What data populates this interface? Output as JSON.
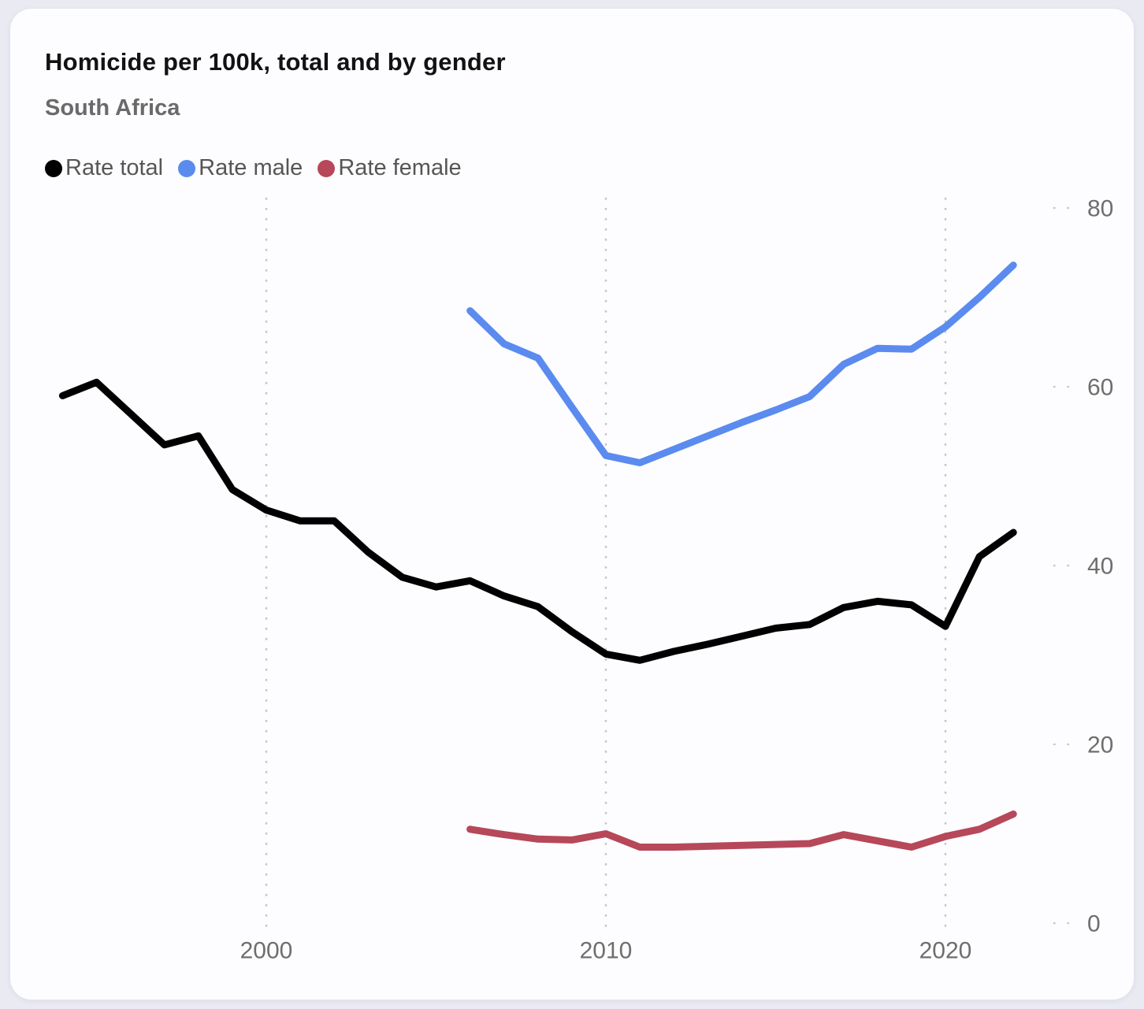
{
  "header": {
    "title": "Homicide per 100k, total and by gender",
    "subtitle": "South Africa"
  },
  "legend": {
    "items": [
      {
        "label": "Rate total",
        "color": "#000000"
      },
      {
        "label": "Rate male",
        "color": "#5b8bef"
      },
      {
        "label": "Rate female",
        "color": "#b6485a"
      }
    ]
  },
  "colors": {
    "page_background": "#e9eaf2",
    "card_background": "#fdfdff",
    "gridline": "#c6c6c6",
    "axis_text": "#6e6e6e",
    "title_text": "#121212",
    "subtitle_text": "#6a6a6a"
  },
  "chart_data": {
    "type": "line",
    "title": "Homicide per 100k, total and by gender",
    "subtitle": "South Africa",
    "xlabel": "",
    "ylabel": "",
    "ylim": [
      0,
      80
    ],
    "y_ticks": [
      80,
      60,
      40,
      20,
      0
    ],
    "x_ticks": [
      2000,
      2010,
      2020
    ],
    "grid": "vertical-dotted",
    "legend_position": "top-left",
    "y_axis_side": "right",
    "series": [
      {
        "name": "Rate total",
        "color": "#000000",
        "x": [
          1994,
          1995,
          1996,
          1997,
          1998,
          1999,
          2000,
          2001,
          2002,
          2003,
          2004,
          2005,
          2006,
          2007,
          2008,
          2009,
          2010,
          2011,
          2012,
          2013,
          2014,
          2015,
          2016,
          2017,
          2018,
          2019,
          2020,
          2021,
          2022
        ],
        "values": [
          59,
          60.5,
          57,
          53.5,
          54.5,
          48.5,
          46.2,
          45,
          45,
          41.5,
          38.7,
          37.6,
          38.3,
          36.6,
          35.4,
          32.6,
          30.1,
          29.4,
          30.4,
          31.2,
          32.1,
          33,
          33.4,
          35.3,
          36,
          35.6,
          33.2,
          41,
          43.7
        ]
      },
      {
        "name": "Rate male",
        "color": "#5b8bef",
        "x": [
          2006,
          2007,
          2008,
          2009,
          2010,
          2011,
          2012,
          2013,
          2014,
          2015,
          2016,
          2017,
          2018,
          2019,
          2020,
          2021,
          2022
        ],
        "values": [
          68.5,
          64.8,
          63.2,
          57.7,
          52.3,
          51.5,
          53,
          54.5,
          56,
          57.4,
          58.9,
          62.5,
          64.3,
          64.2,
          66.7,
          70,
          73.6
        ]
      },
      {
        "name": "Rate female",
        "color": "#b6485a",
        "x": [
          2006,
          2007,
          2008,
          2009,
          2010,
          2011,
          2012,
          2013,
          2014,
          2015,
          2016,
          2017,
          2018,
          2019,
          2020,
          2021,
          2022
        ],
        "values": [
          10.5,
          9.9,
          9.4,
          9.3,
          10,
          8.5,
          8.5,
          8.6,
          8.7,
          8.8,
          8.9,
          9.9,
          9.2,
          8.5,
          9.7,
          10.5,
          12.2
        ]
      }
    ]
  }
}
